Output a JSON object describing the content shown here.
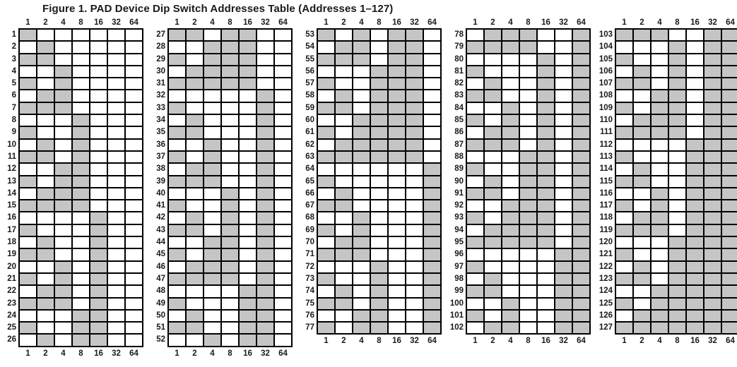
{
  "title": "Figure 1. PAD Device Dip Switch Addresses Table (Addresses 1–127)",
  "colors": {
    "shaded": "#c5c5c5",
    "unshaded": "#ffffff",
    "grid": "#000000",
    "text": "#1a1a1a"
  },
  "chart_data": {
    "type": "table",
    "title": "Figure 1. PAD Device Dip Switch Addresses Table (Addresses 1–127)",
    "description_of_encoding": "Each row is a device address 1-127; a shaded cell means that dip switch (bit value column) is set. Shading equals the binary representation of the address, least-significant bit in column 1.",
    "bit_columns": [
      1,
      2,
      4,
      8,
      16,
      32,
      64
    ],
    "header_positions": [
      "top",
      "bottom"
    ],
    "column_groups": [
      {
        "start": 1,
        "end": 26
      },
      {
        "start": 27,
        "end": 52
      },
      {
        "start": 53,
        "end": 77
      },
      {
        "start": 78,
        "end": 102
      },
      {
        "start": 103,
        "end": 127
      }
    ],
    "bit_matrix": [
      "1000000",
      "0100000",
      "1100000",
      "0010000",
      "1010000",
      "0110000",
      "1110000",
      "0001000",
      "1001000",
      "0101000",
      "1101000",
      "0011000",
      "1011000",
      "0111000",
      "1111000",
      "0000100",
      "1000100",
      "0100100",
      "1100100",
      "0010100",
      "1010100",
      "0110100",
      "1110100",
      "0001100",
      "1001100",
      "0101100",
      "1101100",
      "0011100",
      "1011100",
      "0111100",
      "1111100",
      "0000010",
      "1000010",
      "0100010",
      "1100010",
      "0010010",
      "1010010",
      "0110010",
      "1110010",
      "0001010",
      "1001010",
      "0101010",
      "1101010",
      "0011010",
      "1011010",
      "0111010",
      "1111010",
      "0000110",
      "1000110",
      "0100110",
      "1100110",
      "0010110",
      "1010110",
      "0110110",
      "1110110",
      "0001110",
      "1001110",
      "0101110",
      "1101110",
      "0011110",
      "1011110",
      "0111110",
      "1111110",
      "0000001",
      "1000001",
      "0100001",
      "1100001",
      "0010001",
      "1010001",
      "0110001",
      "1110001",
      "0001001",
      "1001001",
      "0101001",
      "1101001",
      "0011001",
      "1011001",
      "0111001",
      "1111001",
      "0000101",
      "1000101",
      "0100101",
      "1100101",
      "0010101",
      "1010101",
      "0110101",
      "1110101",
      "0001101",
      "1001101",
      "0101101",
      "1101101",
      "0011101",
      "1011101",
      "0111101",
      "1111101",
      "0000011",
      "1000011",
      "0100011",
      "1100011",
      "0010011",
      "1010011",
      "0110011",
      "1110011",
      "0001011",
      "1001011",
      "0101011",
      "1101011",
      "0011011",
      "1011011",
      "0111011",
      "1111011",
      "0000111",
      "1000111",
      "0100111",
      "1100111",
      "0010111",
      "1010111",
      "0110111",
      "1110111",
      "0001111",
      "1001111",
      "0101111",
      "1101111",
      "0011111",
      "1011111",
      "0111111",
      "1111111"
    ]
  }
}
